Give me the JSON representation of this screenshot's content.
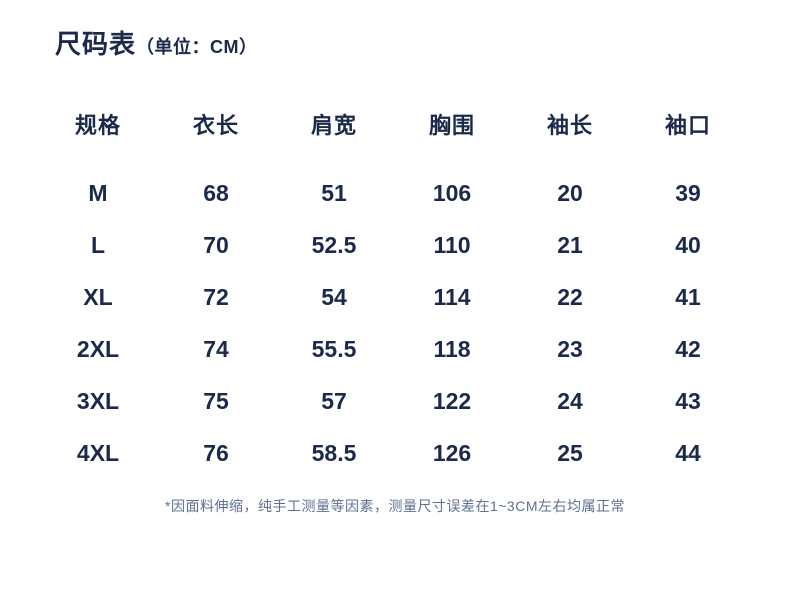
{
  "title": {
    "main": "尺码表",
    "unit": "（单位：CM）"
  },
  "colors": {
    "text_primary": "#1b2a4a",
    "note_text": "#5e7090",
    "background": "#ffffff"
  },
  "chart_data": {
    "type": "table",
    "title": "尺码表（单位：CM）",
    "unit": "CM",
    "columns": [
      "规格",
      "衣长",
      "肩宽",
      "胸围",
      "袖长",
      "袖口"
    ],
    "rows": [
      [
        "M",
        68,
        51,
        106,
        20,
        39
      ],
      [
        "L",
        70,
        52.5,
        110,
        21,
        40
      ],
      [
        "XL",
        72,
        54,
        114,
        22,
        41
      ],
      [
        "2XL",
        74,
        55.5,
        118,
        23,
        42
      ],
      [
        "3XL",
        75,
        57,
        122,
        24,
        43
      ],
      [
        "4XL",
        76,
        58.5,
        126,
        25,
        44
      ]
    ],
    "note": "*因面料伸缩，纯手工测量等因素，测量尺寸误差在1~3CM左右均属正常"
  }
}
